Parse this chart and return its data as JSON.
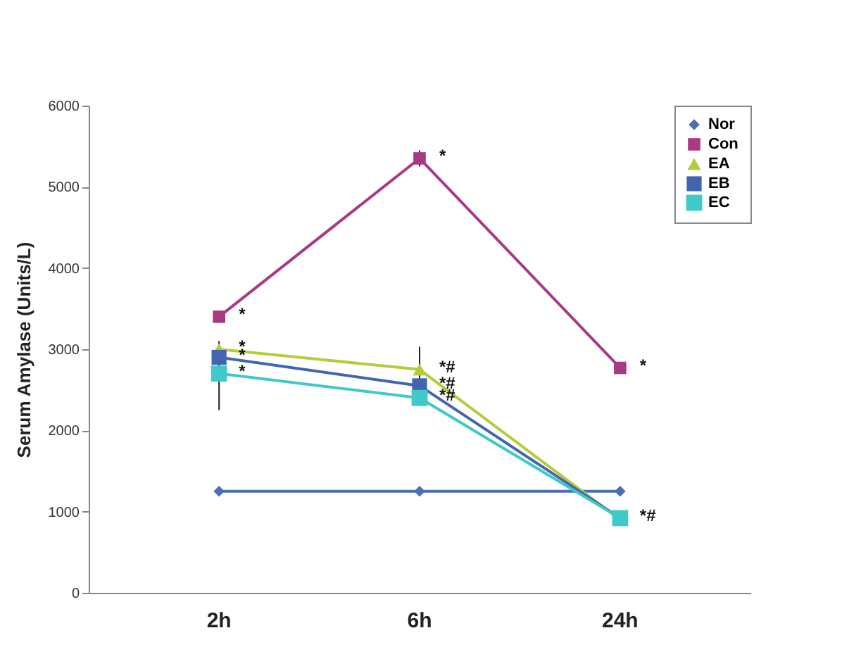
{
  "chart_data": {
    "type": "line",
    "ylabel": "Serum Amylase (Units/L)",
    "categories": [
      "2h",
      "6h",
      "24h"
    ],
    "series": [
      {
        "name": "Nor",
        "color": "#4a6fb5",
        "marker": "diamond",
        "values": [
          1250,
          1250,
          1250
        ]
      },
      {
        "name": "Con",
        "color": "#a83a84",
        "marker": "square",
        "values": [
          3400,
          5350,
          2770
        ],
        "errors": [
          null,
          100,
          null
        ]
      },
      {
        "name": "EA",
        "color": "#b5cc3a",
        "marker": "triangle",
        "values": [
          3000,
          2750,
          900
        ],
        "errors": [
          null,
          [
            2500,
            3030
          ],
          null
        ]
      },
      {
        "name": "EB",
        "color": "#4066b0",
        "marker": "square",
        "values": [
          2900,
          2550,
          920
        ],
        "errors": [
          [
            2250,
            3100
          ],
          null,
          null
        ]
      },
      {
        "name": "EC",
        "color": "#3fc9c9",
        "marker": "square",
        "values": [
          2700,
          2400,
          920
        ]
      }
    ],
    "ylim": [
      0,
      6000
    ],
    "yticks": [
      0,
      1000,
      2000,
      3000,
      4000,
      5000,
      6000
    ],
    "legend": "top right",
    "annotations": [
      {
        "text": "*",
        "x": "2h",
        "y": 3400
      },
      {
        "text": "*",
        "x": "2h",
        "y": 3000
      },
      {
        "text": "*",
        "x": "2h",
        "y": 2900
      },
      {
        "text": "*",
        "x": "2h",
        "y": 2700
      },
      {
        "text": "*",
        "x": "6h",
        "y": 5350
      },
      {
        "text": "*#",
        "x": "6h",
        "y": 2750
      },
      {
        "text": "*#",
        "x": "6h",
        "y": 2550
      },
      {
        "text": "*#",
        "x": "6h",
        "y": 2400
      },
      {
        "text": "*",
        "x": "24h",
        "y": 2770
      },
      {
        "text": "*#",
        "x": "24h",
        "y": 920
      }
    ]
  }
}
